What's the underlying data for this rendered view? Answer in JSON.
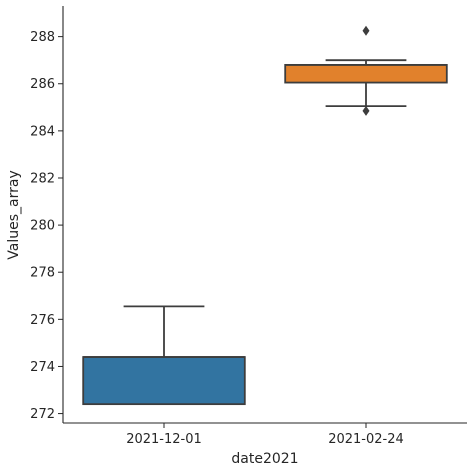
{
  "chart_data": {
    "type": "box",
    "xlabel": "date2021",
    "ylabel": "Values_array",
    "categories": [
      "2021-12-01",
      "2021-02-24"
    ],
    "ylim": [
      271.6,
      289.3
    ],
    "yticks": [
      272,
      274,
      276,
      278,
      280,
      282,
      284,
      286,
      288
    ],
    "grid": false,
    "boxes": [
      {
        "category": "2021-12-01",
        "whisker_low": 272.4,
        "q1": 272.4,
        "median": 274.4,
        "q3": 274.4,
        "whisker_high": 276.55,
        "outliers": [],
        "color": "#3274a1"
      },
      {
        "category": "2021-02-24",
        "whisker_low": 285.05,
        "q1": 286.05,
        "median": 286.8,
        "q3": 286.8,
        "whisker_high": 287.0,
        "outliers": [
          284.85,
          288.25
        ],
        "color": "#e1812c"
      }
    ]
  }
}
